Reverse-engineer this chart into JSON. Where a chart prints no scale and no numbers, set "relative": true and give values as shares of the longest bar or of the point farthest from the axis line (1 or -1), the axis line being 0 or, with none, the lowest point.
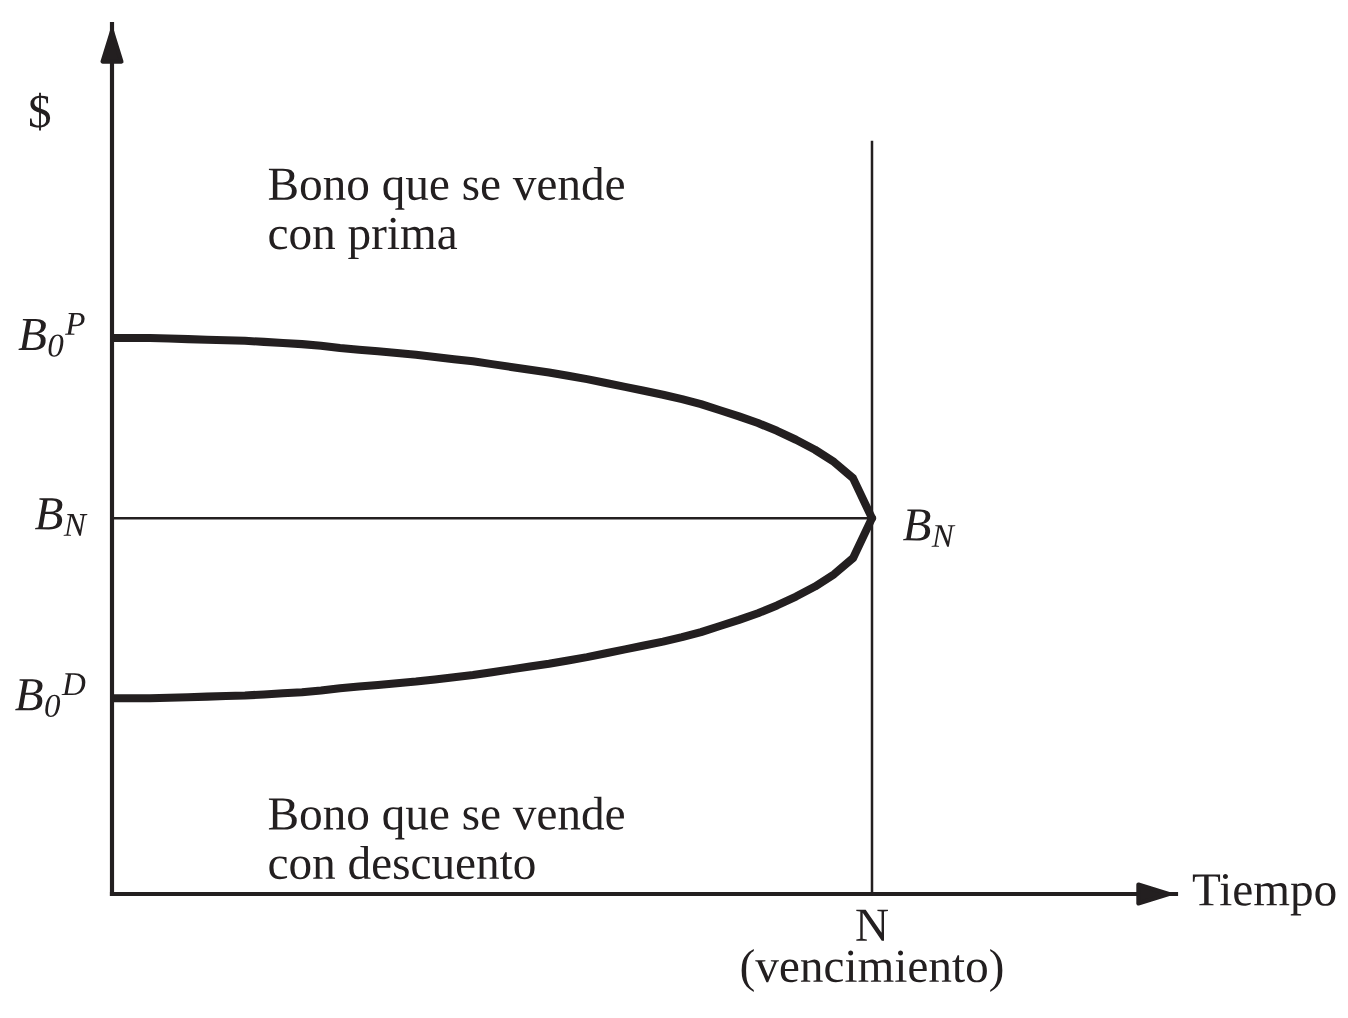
{
  "chart_data": {
    "type": "line",
    "relative": true,
    "xlabel": "Tiempo",
    "categories": [
      null,
      null,
      null,
      null,
      null,
      null,
      null,
      null,
      null,
      null,
      null,
      null,
      null,
      null,
      null,
      null,
      null,
      null,
      null,
      null,
      null,
      null,
      null,
      null,
      null,
      null,
      null,
      null,
      null,
      null,
      null,
      null,
      null,
      null,
      null,
      null,
      null,
      null,
      null,
      null,
      null,
      null,
      null,
      null,
      null,
      null,
      null,
      null,
      null,
      null,
      null,
      null,
      null,
      null,
      null,
      null,
      null
    ],
    "series": [
      {
        "name": "Bono que se vende\ncon prima",
        "color": "#231f20",
        "values": [
          1.0,
          1.0,
          1.0,
          0.999,
          0.998,
          0.997,
          0.996,
          0.995,
          0.993,
          0.991,
          0.989,
          0.986,
          0.982,
          0.979,
          0.976,
          0.973,
          0.97,
          0.966,
          0.962,
          0.958,
          0.953,
          0.948,
          0.943,
          0.938,
          0.932,
          0.926,
          0.919,
          0.912,
          0.905,
          0.898,
          0.89,
          0.881,
          0.87,
          0.859,
          0.847,
          0.833,
          0.817,
          0.799,
          0.777,
          0.748,
          0.676,
          null,
          null,
          null,
          null,
          null,
          null,
          null,
          null,
          null,
          null,
          null,
          null,
          null,
          null,
          null,
          null
        ]
      },
      {
        "name": "Bono que se vende\ncon descuento",
        "color": "#231f20",
        "values": [
          0.352,
          0.352,
          0.352,
          0.353,
          0.354,
          0.355,
          0.356,
          0.357,
          0.359,
          0.361,
          0.363,
          0.366,
          0.37,
          0.373,
          0.376,
          0.379,
          0.382,
          0.386,
          0.39,
          0.394,
          0.399,
          0.404,
          0.409,
          0.414,
          0.42,
          0.426,
          0.433,
          0.44,
          0.447,
          0.454,
          0.462,
          0.471,
          0.482,
          0.493,
          0.505,
          0.519,
          0.535,
          0.553,
          0.575,
          0.604,
          0.676,
          null,
          null,
          null,
          null,
          null,
          null,
          null,
          null,
          null,
          null,
          null,
          null,
          null,
          null,
          null,
          null
        ]
      }
    ],
    "ref_lines": [
      {
        "axis": "y",
        "value": 0.676,
        "label": "B$_{N}$",
        "color": "#231f20"
      }
    ],
    "annotations": [
      "$",
      "B$_{0}$$^{P}$",
      "B$_{N}$",
      "B$_{0}$$^{D}$",
      "N\n(vencimiento)"
    ]
  }
}
